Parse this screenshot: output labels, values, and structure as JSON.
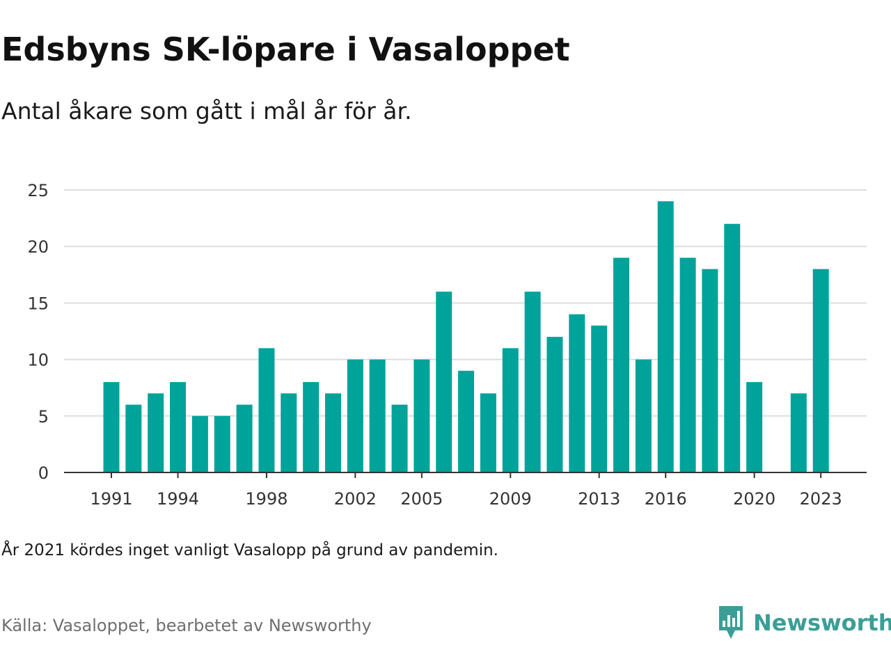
{
  "colors": {
    "bar": "#00a39a",
    "brand": "#3a9e96",
    "grid": "#dddddd",
    "axis": "#333333"
  },
  "header": {
    "title": "Edsbyns SK-löpare i Vasaloppet",
    "subtitle": "Antal åkare som gått i mål år för år."
  },
  "footer": {
    "note": "År 2021 kördes inget vanligt Vasalopp på grund av pandemin.",
    "source": "Källa: Vasaloppet, bearbetet av Newsworthy",
    "logo_text": "Newsworthy",
    "logo_icon": "newsworthy-chart-bubble-icon"
  },
  "chart_data": {
    "type": "bar",
    "categories": [
      "1991",
      "1992",
      "1993",
      "1994",
      "1995",
      "1996",
      "1997",
      "1998",
      "1999",
      "2000",
      "2001",
      "2002",
      "2003",
      "2004",
      "2005",
      "2006",
      "2007",
      "2008",
      "2009",
      "2010",
      "2011",
      "2012",
      "2013",
      "2014",
      "2015",
      "2016",
      "2017",
      "2018",
      "2019",
      "2020",
      "2021",
      "2022",
      "2023"
    ],
    "values": [
      8,
      6,
      7,
      8,
      5,
      5,
      6,
      11,
      7,
      8,
      7,
      10,
      10,
      6,
      10,
      16,
      9,
      7,
      11,
      16,
      12,
      14,
      13,
      19,
      10,
      24,
      19,
      18,
      22,
      8,
      null,
      7,
      18
    ],
    "x_tick_labels": [
      "1991",
      "1994",
      "1998",
      "2002",
      "2005",
      "2009",
      "2013",
      "2016",
      "2020",
      "2023"
    ],
    "y_ticks": [
      0,
      5,
      10,
      15,
      20,
      25
    ],
    "ylim": [
      0,
      25
    ],
    "grid": true,
    "legend": "none",
    "xlabel": "",
    "ylabel": ""
  }
}
